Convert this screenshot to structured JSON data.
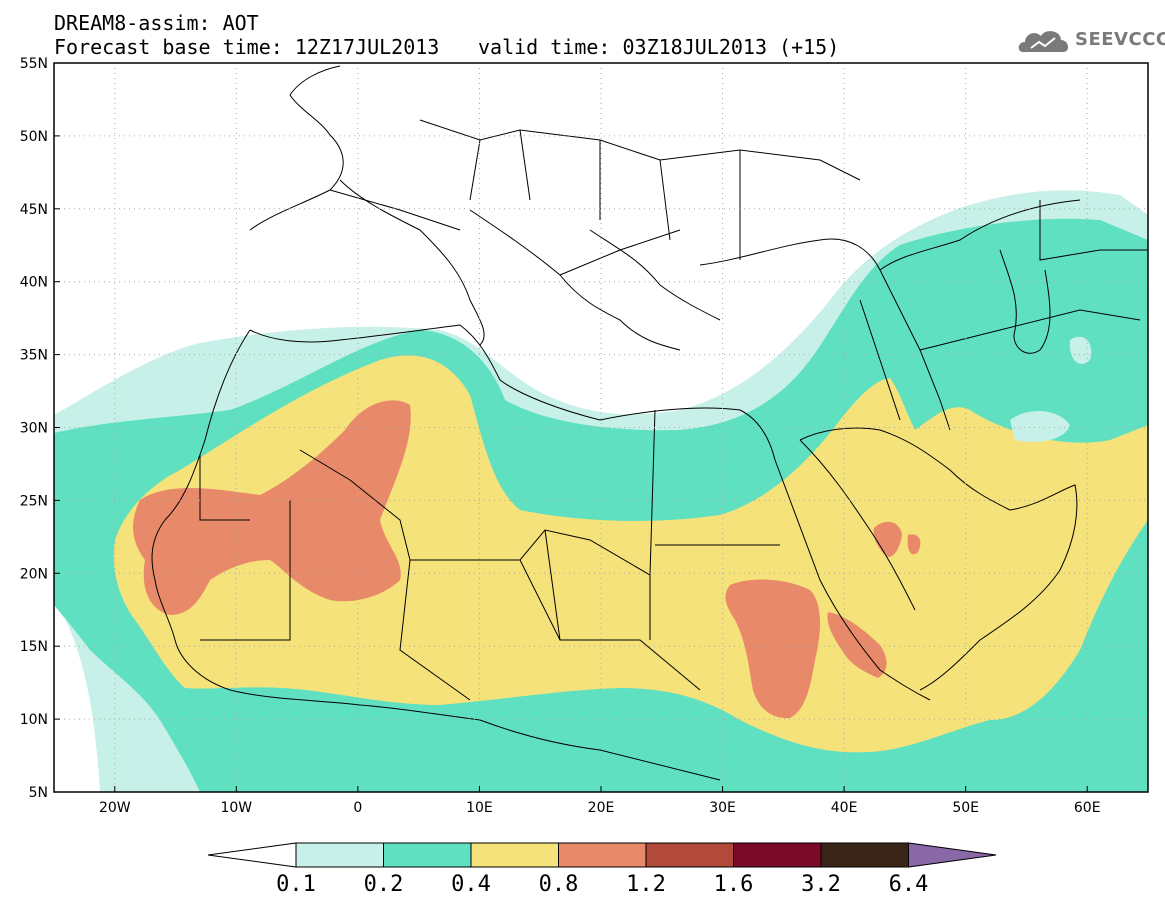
{
  "header": {
    "title": "DREAM8-assim: AOT",
    "base_time": "Forecast base time: 12Z17JUL2013",
    "valid_time": "valid time: 03Z18JUL2013 (+15)"
  },
  "logo": {
    "text": "SEEVCCC",
    "icon": "cloud-icon"
  },
  "map": {
    "lat_ticks": [
      "55N",
      "50N",
      "45N",
      "40N",
      "35N",
      "30N",
      "25N",
      "20N",
      "15N",
      "10N",
      "5N"
    ],
    "lon_ticks": [
      "20W",
      "10W",
      "0",
      "10E",
      "20E",
      "30E",
      "40E",
      "50E",
      "60E"
    ],
    "lon_range": [
      -25,
      65
    ],
    "lat_range": [
      5,
      55
    ]
  },
  "colorbar": {
    "labels": [
      "0.1",
      "0.2",
      "0.4",
      "0.8",
      "1.2",
      "1.6",
      "3.2",
      "6.4"
    ],
    "colors": [
      "#ffffff",
      "#c7f0e8",
      "#5fe0c0",
      "#f5e27a",
      "#e88a6a",
      "#b14a3a",
      "#7a0a2a",
      "#3a2418",
      "#8a68a8"
    ]
  }
}
